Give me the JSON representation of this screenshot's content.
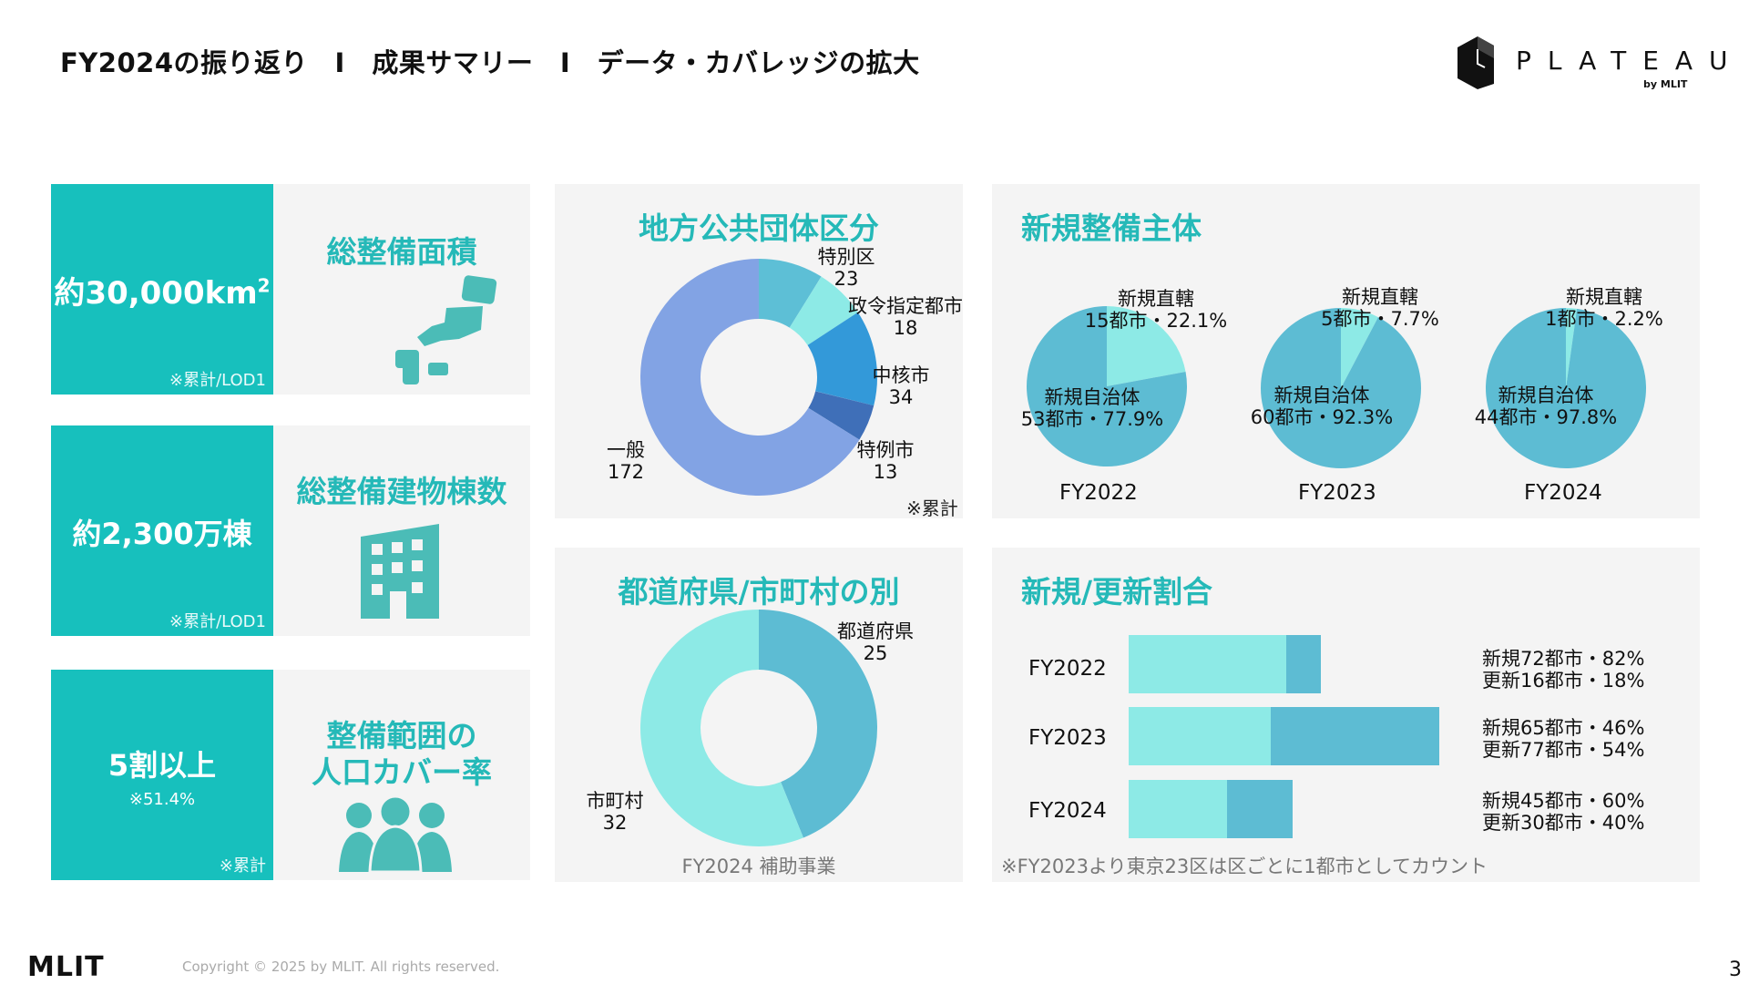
{
  "header": {
    "title": "FY2024の振り返り　I　成果サマリー　I　データ・カバレッジの拡大",
    "logo_text": "PLATEAU",
    "logo_sub": "by MLIT"
  },
  "kpis": [
    {
      "value": "約30,000km",
      "sup": "2",
      "note": "※累計/LOD1",
      "label": "総整備面積",
      "icon": "japan-map-icon"
    },
    {
      "value": "約2,300万棟",
      "note": "※累計/LOD1",
      "label": "総整備建物棟数",
      "icon": "building-icon"
    },
    {
      "value": "5割以上",
      "sub": "※51.4%",
      "note": "※累計",
      "label_line1": "整備範囲の",
      "label_line2": "人口カバー率",
      "icon": "people-icon"
    }
  ],
  "local_gov": {
    "title": "地方公共団体区分",
    "note": "※累計",
    "chart_data": {
      "type": "pie",
      "title": "地方公共団体区分",
      "categories": [
        "特別区",
        "政令指定都市",
        "中核市",
        "特例市",
        "一般"
      ],
      "values": [
        23,
        18,
        34,
        13,
        172
      ],
      "colors": [
        "#5dbfd6",
        "#8deae6",
        "#3399d9",
        "#3f6fb8",
        "#82a3e4"
      ]
    },
    "labels": [
      {
        "name": "特別区",
        "value": "23"
      },
      {
        "name": "政令指定都市",
        "value": "18"
      },
      {
        "name": "中核市",
        "value": "34"
      },
      {
        "name": "特例市",
        "value": "13"
      },
      {
        "name": "一般",
        "value": "172"
      }
    ]
  },
  "pref_muni": {
    "title": "都道府県/市町村の別",
    "caption": "FY2024 補助事業",
    "chart_data": {
      "type": "pie",
      "title": "都道府県/市町村の別",
      "categories": [
        "都道府県",
        "市町村"
      ],
      "values": [
        25,
        32
      ],
      "colors": [
        "#5dbcd3",
        "#8deae6"
      ]
    },
    "labels": [
      {
        "name": "都道府県",
        "value": "25"
      },
      {
        "name": "市町村",
        "value": "32"
      }
    ]
  },
  "new_entities": {
    "title": "新規整備主体",
    "chart_data": [
      {
        "type": "pie",
        "title": "FY2022",
        "categories": [
          "新規直轄",
          "新規自治体"
        ],
        "values": [
          22.1,
          77.9
        ],
        "counts": [
          15,
          53
        ]
      },
      {
        "type": "pie",
        "title": "FY2023",
        "categories": [
          "新規直轄",
          "新規自治体"
        ],
        "values": [
          7.7,
          92.3
        ],
        "counts": [
          5,
          60
        ]
      },
      {
        "type": "pie",
        "title": "FY2024",
        "categories": [
          "新規直轄",
          "新規自治体"
        ],
        "values": [
          2.2,
          97.8
        ],
        "counts": [
          1,
          44
        ]
      }
    ],
    "colors": {
      "direct": "#8deae6",
      "local": "#5dbcd3"
    },
    "pies": [
      {
        "year": "FY2022",
        "direct_name": "新規直轄",
        "direct_val": "15都市・22.1%",
        "local_name": "新規自治体",
        "local_val": "53都市・77.9%"
      },
      {
        "year": "FY2023",
        "direct_name": "新規直轄",
        "direct_val": "5都市・7.7%",
        "local_name": "新規自治体",
        "local_val": "60都市・92.3%"
      },
      {
        "year": "FY2024",
        "direct_name": "新規直轄",
        "direct_val": "1都市・2.2%",
        "local_name": "新規自治体",
        "local_val": "44都市・97.8%"
      }
    ]
  },
  "ratio": {
    "title": "新規/更新割合",
    "note": "※FY2023より東京23区は区ごとに1都市としてカウント",
    "chart_data": {
      "type": "bar",
      "orientation": "horizontal",
      "stacked": true,
      "title": "新規/更新割合",
      "categories": [
        "FY2022",
        "FY2023",
        "FY2024"
      ],
      "series": [
        {
          "name": "新規",
          "values": [
            72,
            65,
            45
          ],
          "color": "#8deae6"
        },
        {
          "name": "更新",
          "values": [
            16,
            77,
            30
          ],
          "color": "#5dbcd3"
        }
      ]
    },
    "rows": [
      {
        "year": "FY2022",
        "new_text": "新規72都市・82%",
        "upd_text": "更新16都市・18%"
      },
      {
        "year": "FY2023",
        "new_text": "新規65都市・46%",
        "upd_text": "更新77都市・54%"
      },
      {
        "year": "FY2024",
        "new_text": "新規45都市・60%",
        "upd_text": "更新30都市・40%"
      }
    ]
  },
  "footer": {
    "logo": "MLIT",
    "copyright": "Copyright © 2025 by MLIT. All rights reserved.",
    "page": "3"
  }
}
